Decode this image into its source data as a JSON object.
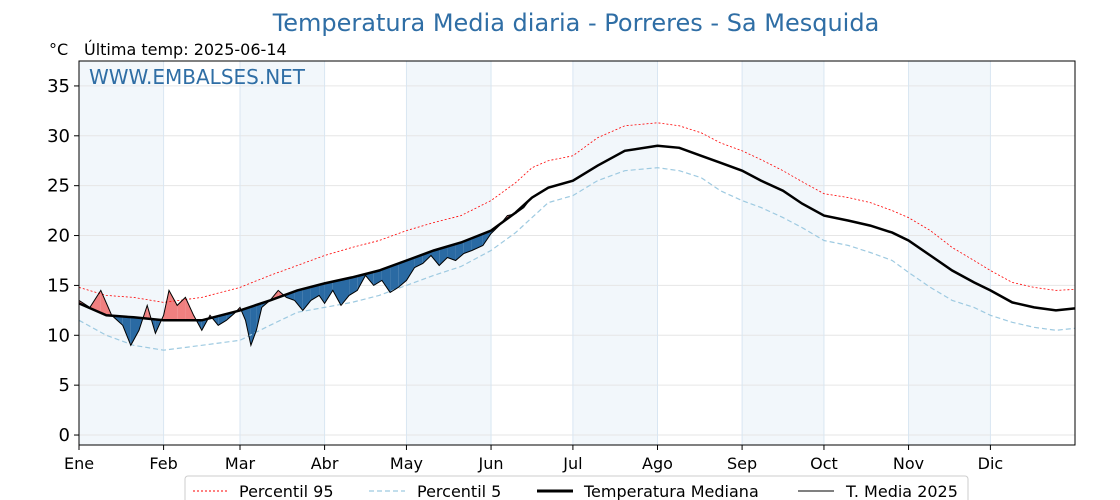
{
  "chart_data": {
    "type": "line",
    "title": "Temperatura Media diaria - Porreres - Sa Mesquida",
    "yunit": "°C",
    "last_temp_label": "Última temp: 2025-06-14",
    "watermark": "WWW.EMBALSES.NET",
    "ylim": [
      -1,
      37.5
    ],
    "xlim": [
      0,
      365
    ],
    "y_ticks": [
      0,
      5,
      10,
      15,
      20,
      25,
      30,
      35
    ],
    "grid": true,
    "legend_position": "bottom",
    "months": [
      {
        "label": "Ene",
        "start": 0
      },
      {
        "label": "Feb",
        "start": 31
      },
      {
        "label": "Mar",
        "start": 59
      },
      {
        "label": "Abr",
        "start": 90
      },
      {
        "label": "May",
        "start": 120
      },
      {
        "label": "Jun",
        "start": 151
      },
      {
        "label": "Jul",
        "start": 181
      },
      {
        "label": "Ago",
        "start": 212
      },
      {
        "label": "Sep",
        "start": 243
      },
      {
        "label": "Oct",
        "start": 273
      },
      {
        "label": "Nov",
        "start": 304
      },
      {
        "label": "Dic",
        "start": 334
      }
    ],
    "colors": {
      "p95": "#ff0000",
      "p5": "#9ecae1",
      "median": "#000000",
      "t2025": "#000000",
      "above": "#f08080",
      "below": "#2a6aa3",
      "band": "#f2f7fb",
      "title": "#2f6ea5"
    },
    "legend": [
      "Percentil 95",
      "Percentil 5",
      "Temperatura Mediana",
      "T. Media 2025"
    ],
    "median": [
      [
        0,
        13.2
      ],
      [
        10,
        12.0
      ],
      [
        20,
        11.8
      ],
      [
        31,
        11.5
      ],
      [
        45,
        11.5
      ],
      [
        59,
        12.5
      ],
      [
        70,
        13.5
      ],
      [
        80,
        14.5
      ],
      [
        90,
        15.2
      ],
      [
        100,
        15.8
      ],
      [
        110,
        16.5
      ],
      [
        120,
        17.5
      ],
      [
        130,
        18.5
      ],
      [
        140,
        19.3
      ],
      [
        151,
        20.5
      ],
      [
        160,
        22.3
      ],
      [
        166,
        23.8
      ],
      [
        172,
        24.8
      ],
      [
        181,
        25.5
      ],
      [
        190,
        27.0
      ],
      [
        200,
        28.5
      ],
      [
        212,
        29.0
      ],
      [
        220,
        28.8
      ],
      [
        228,
        28.0
      ],
      [
        235,
        27.3
      ],
      [
        243,
        26.5
      ],
      [
        250,
        25.5
      ],
      [
        258,
        24.5
      ],
      [
        265,
        23.2
      ],
      [
        273,
        22.0
      ],
      [
        282,
        21.5
      ],
      [
        290,
        21.0
      ],
      [
        298,
        20.3
      ],
      [
        304,
        19.5
      ],
      [
        312,
        18.0
      ],
      [
        320,
        16.5
      ],
      [
        328,
        15.3
      ],
      [
        334,
        14.5
      ],
      [
        342,
        13.3
      ],
      [
        350,
        12.8
      ],
      [
        358,
        12.5
      ],
      [
        365,
        12.7
      ]
    ],
    "p95": [
      [
        0,
        14.8
      ],
      [
        10,
        14.0
      ],
      [
        20,
        13.8
      ],
      [
        31,
        13.3
      ],
      [
        45,
        13.8
      ],
      [
        59,
        14.8
      ],
      [
        70,
        16.0
      ],
      [
        80,
        17.0
      ],
      [
        90,
        18.0
      ],
      [
        100,
        18.8
      ],
      [
        110,
        19.5
      ],
      [
        120,
        20.5
      ],
      [
        130,
        21.3
      ],
      [
        140,
        22.0
      ],
      [
        151,
        23.5
      ],
      [
        160,
        25.3
      ],
      [
        166,
        26.8
      ],
      [
        172,
        27.5
      ],
      [
        181,
        28.0
      ],
      [
        190,
        29.8
      ],
      [
        200,
        31.0
      ],
      [
        212,
        31.3
      ],
      [
        220,
        31.0
      ],
      [
        228,
        30.3
      ],
      [
        235,
        29.3
      ],
      [
        243,
        28.5
      ],
      [
        250,
        27.6
      ],
      [
        258,
        26.5
      ],
      [
        265,
        25.4
      ],
      [
        273,
        24.2
      ],
      [
        282,
        23.8
      ],
      [
        290,
        23.3
      ],
      [
        298,
        22.5
      ],
      [
        304,
        21.8
      ],
      [
        312,
        20.5
      ],
      [
        320,
        18.8
      ],
      [
        328,
        17.5
      ],
      [
        334,
        16.5
      ],
      [
        342,
        15.3
      ],
      [
        350,
        14.8
      ],
      [
        358,
        14.5
      ],
      [
        365,
        14.6
      ]
    ],
    "p5": [
      [
        0,
        11.5
      ],
      [
        10,
        10.0
      ],
      [
        20,
        9.0
      ],
      [
        31,
        8.5
      ],
      [
        45,
        9.0
      ],
      [
        59,
        9.5
      ],
      [
        70,
        11.0
      ],
      [
        80,
        12.3
      ],
      [
        90,
        12.8
      ],
      [
        100,
        13.3
      ],
      [
        110,
        14.0
      ],
      [
        120,
        15.0
      ],
      [
        130,
        16.0
      ],
      [
        140,
        16.9
      ],
      [
        151,
        18.5
      ],
      [
        160,
        20.3
      ],
      [
        166,
        21.8
      ],
      [
        172,
        23.3
      ],
      [
        181,
        24.0
      ],
      [
        190,
        25.5
      ],
      [
        200,
        26.5
      ],
      [
        212,
        26.8
      ],
      [
        220,
        26.5
      ],
      [
        228,
        25.8
      ],
      [
        235,
        24.5
      ],
      [
        243,
        23.5
      ],
      [
        250,
        22.8
      ],
      [
        258,
        21.8
      ],
      [
        265,
        20.8
      ],
      [
        273,
        19.5
      ],
      [
        282,
        19.0
      ],
      [
        290,
        18.3
      ],
      [
        298,
        17.5
      ],
      [
        304,
        16.3
      ],
      [
        312,
        14.8
      ],
      [
        320,
        13.5
      ],
      [
        328,
        12.8
      ],
      [
        334,
        12.0
      ],
      [
        342,
        11.3
      ],
      [
        350,
        10.8
      ],
      [
        358,
        10.5
      ],
      [
        365,
        10.7
      ]
    ],
    "t2025": [
      [
        0,
        13.5
      ],
      [
        4,
        12.8
      ],
      [
        8,
        14.5
      ],
      [
        12,
        12.0
      ],
      [
        16,
        11.0
      ],
      [
        19,
        9.0
      ],
      [
        22,
        10.5
      ],
      [
        25,
        13.0
      ],
      [
        28,
        10.2
      ],
      [
        31,
        12.0
      ],
      [
        33,
        14.5
      ],
      [
        36,
        13.0
      ],
      [
        39,
        13.8
      ],
      [
        42,
        12.0
      ],
      [
        45,
        10.5
      ],
      [
        48,
        12.0
      ],
      [
        51,
        11.0
      ],
      [
        54,
        11.5
      ],
      [
        57,
        12.2
      ],
      [
        59,
        12.8
      ],
      [
        61,
        11.5
      ],
      [
        63,
        9.0
      ],
      [
        65,
        10.5
      ],
      [
        67,
        12.8
      ],
      [
        70,
        13.5
      ],
      [
        73,
        14.5
      ],
      [
        76,
        13.8
      ],
      [
        79,
        13.5
      ],
      [
        82,
        12.5
      ],
      [
        85,
        13.5
      ],
      [
        88,
        14.0
      ],
      [
        90,
        13.2
      ],
      [
        93,
        14.5
      ],
      [
        96,
        13.0
      ],
      [
        99,
        14.0
      ],
      [
        102,
        14.5
      ],
      [
        105,
        16.0
      ],
      [
        108,
        15.0
      ],
      [
        111,
        15.5
      ],
      [
        114,
        14.3
      ],
      [
        117,
        14.8
      ],
      [
        120,
        15.5
      ],
      [
        123,
        16.8
      ],
      [
        126,
        17.2
      ],
      [
        129,
        18.0
      ],
      [
        132,
        17.0
      ],
      [
        135,
        17.8
      ],
      [
        138,
        17.5
      ],
      [
        141,
        18.2
      ],
      [
        144,
        18.5
      ],
      [
        148,
        19.0
      ],
      [
        151,
        20.2
      ],
      [
        154,
        21.0
      ],
      [
        157,
        22.0
      ],
      [
        160,
        22.2
      ],
      [
        163,
        22.8
      ],
      [
        165,
        23.5
      ]
    ]
  }
}
